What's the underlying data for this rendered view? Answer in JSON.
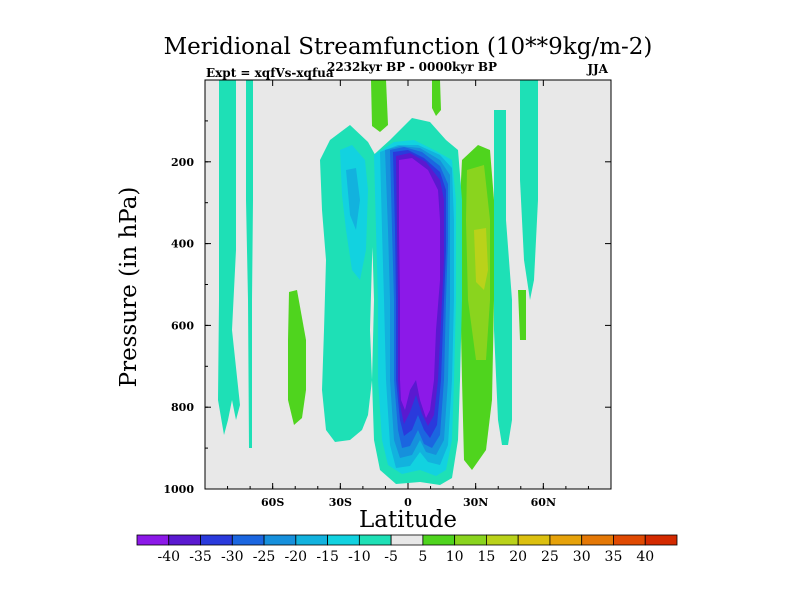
{
  "chart_data": {
    "type": "contour",
    "title": "Meridional Streamfunction (10**9kg/m-2)",
    "subtitle_left": "Expt = xqfVs-xqfua",
    "subtitle_center": "2232kyr BP - 0000kyr BP",
    "subtitle_right": "JJA",
    "xlabel": "Latitude",
    "ylabel": "Pressure (in hPa)",
    "xlim": [
      -90,
      90
    ],
    "ylim": [
      1000,
      0
    ],
    "x_ticks": [
      {
        "value": -60,
        "label": "60S"
      },
      {
        "value": -30,
        "label": "30S"
      },
      {
        "value": 0,
        "label": "0"
      },
      {
        "value": 30,
        "label": "30N"
      },
      {
        "value": 60,
        "label": "60N"
      }
    ],
    "y_ticks": [
      {
        "value": 200,
        "label": "200"
      },
      {
        "value": 400,
        "label": "400"
      },
      {
        "value": 600,
        "label": "600"
      },
      {
        "value": 800,
        "label": "800"
      },
      {
        "value": 1000,
        "label": "1000"
      }
    ],
    "background_color": "#e8e8e8",
    "colorbar": {
      "labels": [
        "-40",
        "-35",
        "-30",
        "-25",
        "-20",
        "-15",
        "-10",
        "-5",
        "5",
        "10",
        "15",
        "20",
        "25",
        "30",
        "35",
        "40"
      ],
      "colors": [
        "#8c19e8",
        "#5a19d0",
        "#2a3adc",
        "#1b66e0",
        "#1690dc",
        "#12b2de",
        "#12d2e0",
        "#1ee0b6",
        "#e8e8e8",
        "#4fd41e",
        "#8ad41e",
        "#bad21a",
        "#dcc010",
        "#e6a20a",
        "#e47806",
        "#e04a02",
        "#d42a00"
      ]
    },
    "regions": [
      {
        "name": "tropical-negative-cell",
        "level": -40,
        "lat_range": [
          -3,
          20
        ],
        "p_range": [
          160,
          960
        ]
      },
      {
        "name": "nh-subtropical-positive-cell",
        "level": 15,
        "lat_range": [
          18,
          31
        ],
        "p_range": [
          150,
          970
        ]
      },
      {
        "name": "sh-midlat-negative-band",
        "level": -5,
        "lat_range": [
          -80,
          -74
        ],
        "p_range": [
          0,
          860
        ]
      },
      {
        "name": "sh-positive-cell",
        "level": 5,
        "lat_range": [
          -53,
          -45
        ],
        "p_range": [
          520,
          850
        ]
      },
      {
        "name": "upper-positive-cell",
        "level": 5,
        "lat_range": [
          -14,
          -10
        ],
        "p_range": [
          0,
          110
        ]
      }
    ]
  }
}
